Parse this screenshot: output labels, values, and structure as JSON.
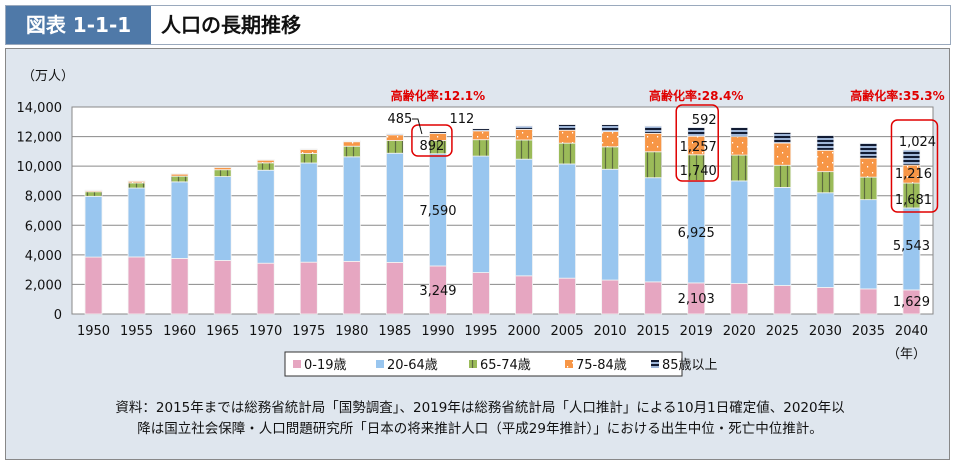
{
  "header": {
    "figure_label": "図表 1-1-1",
    "title": "人口の長期推移"
  },
  "source_note": {
    "line1": "資料：2015年までは総務省統計局「国勢調査」、2019年は総務省統計局「人口推計」による10月1日確定値、2020年以",
    "line2": "降は国立社会保障・人口問題研究所「日本の将来推計人口（平成29年推計）」における出生中位・死亡中位推計。"
  },
  "chart_data": {
    "type": "bar",
    "stacked": true,
    "title": "人口の長期推移",
    "ylabel": "（万人）",
    "xlabel": "（年）",
    "ylim": [
      0,
      14000
    ],
    "yticks": [
      "0",
      "2,000",
      "4,000",
      "6,000",
      "8,000",
      "10,000",
      "12,000",
      "14,000"
    ],
    "ytick_values": [
      0,
      2000,
      4000,
      6000,
      8000,
      10000,
      12000,
      14000
    ],
    "grid": true,
    "legend_position": "bottom",
    "categories": [
      "1950",
      "1955",
      "1960",
      "1965",
      "1970",
      "1975",
      "1980",
      "1985",
      "1990",
      "1995",
      "2000",
      "2005",
      "2010",
      "2015",
      "2019",
      "2020",
      "2025",
      "2030",
      "2035",
      "2040"
    ],
    "series": [
      {
        "name": "0-19歳",
        "color": "#e6a6c1",
        "pattern": "solid",
        "values": [
          3849,
          3859,
          3760,
          3621,
          3435,
          3504,
          3558,
          3489,
          3249,
          2803,
          2582,
          2423,
          2295,
          2174,
          2103,
          2063,
          1928,
          1795,
          1698,
          1629
        ]
      },
      {
        "name": "20-64歳",
        "color": "#99c6ef",
        "pattern": "solid",
        "values": [
          4111,
          4661,
          5177,
          5674,
          6289,
          6710,
          7073,
          7384,
          7590,
          7877,
          7888,
          7724,
          7495,
          7044,
          6925,
          6938,
          6635,
          6405,
          6036,
          5543
        ]
      },
      {
        "name": "65-74歳",
        "color": "#9bbb59",
        "pattern": "vertical-lines",
        "values": [
          309,
          347,
          384,
          463,
          499,
          642,
          717,
          855,
          892,
          1109,
          1301,
          1407,
          1517,
          1755,
          1740,
          1747,
          1497,
          1428,
          1522,
          1681
        ]
      },
      {
        "name": "75-84歳",
        "color": "#f79646",
        "pattern": "dots",
        "values": [
          94,
          124,
          151,
          164,
          182,
          268,
          303,
          391,
          485,
          597,
          718,
          876,
          1033,
          1247,
          1257,
          1248,
          1497,
          1446,
          1286,
          1216
        ]
      },
      {
        "name": "85歳以上",
        "color": "#1f3864",
        "pattern": "horizontal-lines",
        "values": [
          11,
          15,
          18,
          23,
          28,
          38,
          52,
          71,
          112,
          148,
          224,
          383,
          467,
          488,
          592,
          620,
          720,
          1003,
          1003,
          1024
        ]
      }
    ],
    "data_labels": [
      {
        "category": "1990",
        "series": "0-19歳",
        "text": "3,249"
      },
      {
        "category": "1990",
        "series": "20-64歳",
        "text": "7,590"
      },
      {
        "category": "1990",
        "series": "65-74歳",
        "text": "892"
      },
      {
        "category": "1990",
        "series": "75-84歳",
        "text": "485"
      },
      {
        "category": "1990",
        "series": "85歳以上",
        "text": "112"
      },
      {
        "category": "2019",
        "series": "0-19歳",
        "text": "2,103"
      },
      {
        "category": "2019",
        "series": "20-64歳",
        "text": "6,925"
      },
      {
        "category": "2019",
        "series": "65-74歳",
        "text": "1,740"
      },
      {
        "category": "2019",
        "series": "75-84歳",
        "text": "1,257"
      },
      {
        "category": "2019",
        "series": "85歳以上",
        "text": "592"
      },
      {
        "category": "2040",
        "series": "0-19歳",
        "text": "1,629"
      },
      {
        "category": "2040",
        "series": "20-64歳",
        "text": "5,543"
      },
      {
        "category": "2040",
        "series": "65-74歳",
        "text": "1,681"
      },
      {
        "category": "2040",
        "series": "75-84歳",
        "text": "1,216"
      },
      {
        "category": "2040",
        "series": "85歳以上",
        "text": "1,024"
      }
    ],
    "annotations": [
      {
        "category": "1990",
        "text": "高齢化率:12.1%"
      },
      {
        "category": "2019",
        "text": "高齢化率:28.4%"
      },
      {
        "category": "2040",
        "text": "高齢化率:35.3%"
      }
    ],
    "highlight_color": "#e00000"
  }
}
